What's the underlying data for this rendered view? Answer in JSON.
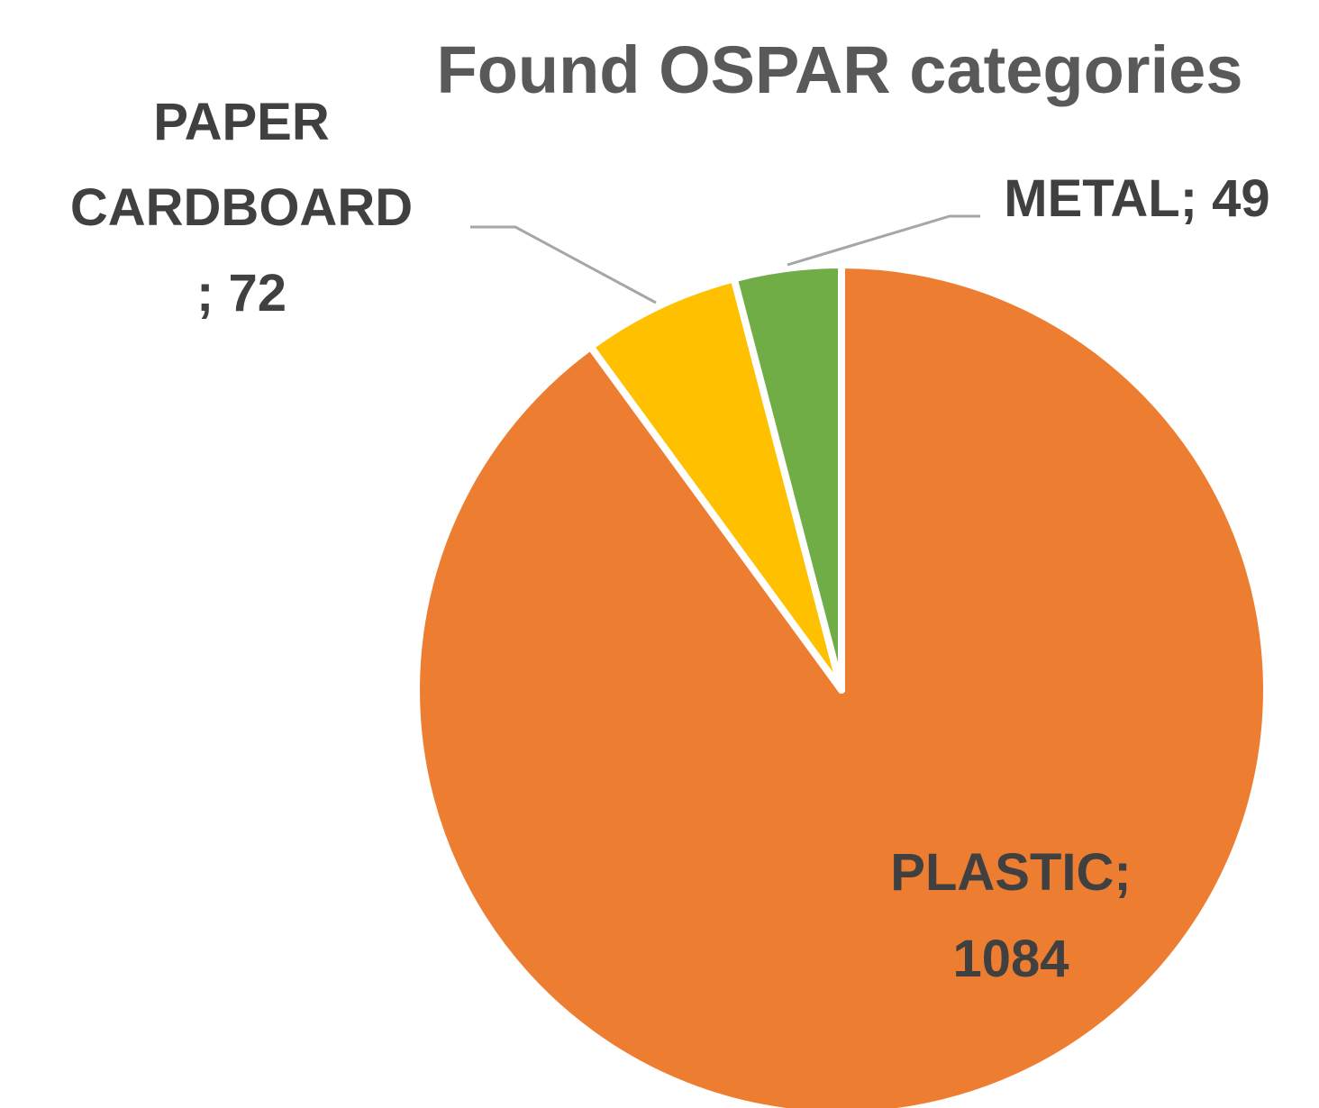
{
  "chart_data": {
    "type": "pie",
    "title": "Found OSPAR categories",
    "slices": [
      {
        "name": "PLASTIC",
        "value": 1084,
        "color": "#ED7D31",
        "label_lines": [
          "PLASTIC;",
          "1084"
        ]
      },
      {
        "name": "PAPER CARDBOARD",
        "value": 72,
        "color": "#FFC000",
        "label_lines": [
          "PAPER",
          "CARDBOARD",
          "; 72"
        ]
      },
      {
        "name": "METAL",
        "value": 49,
        "color": "#70AD47",
        "label_lines": [
          "METAL; 49"
        ]
      }
    ],
    "start_angle": "12 o'clock",
    "direction": "clockwise",
    "legend": "none"
  }
}
